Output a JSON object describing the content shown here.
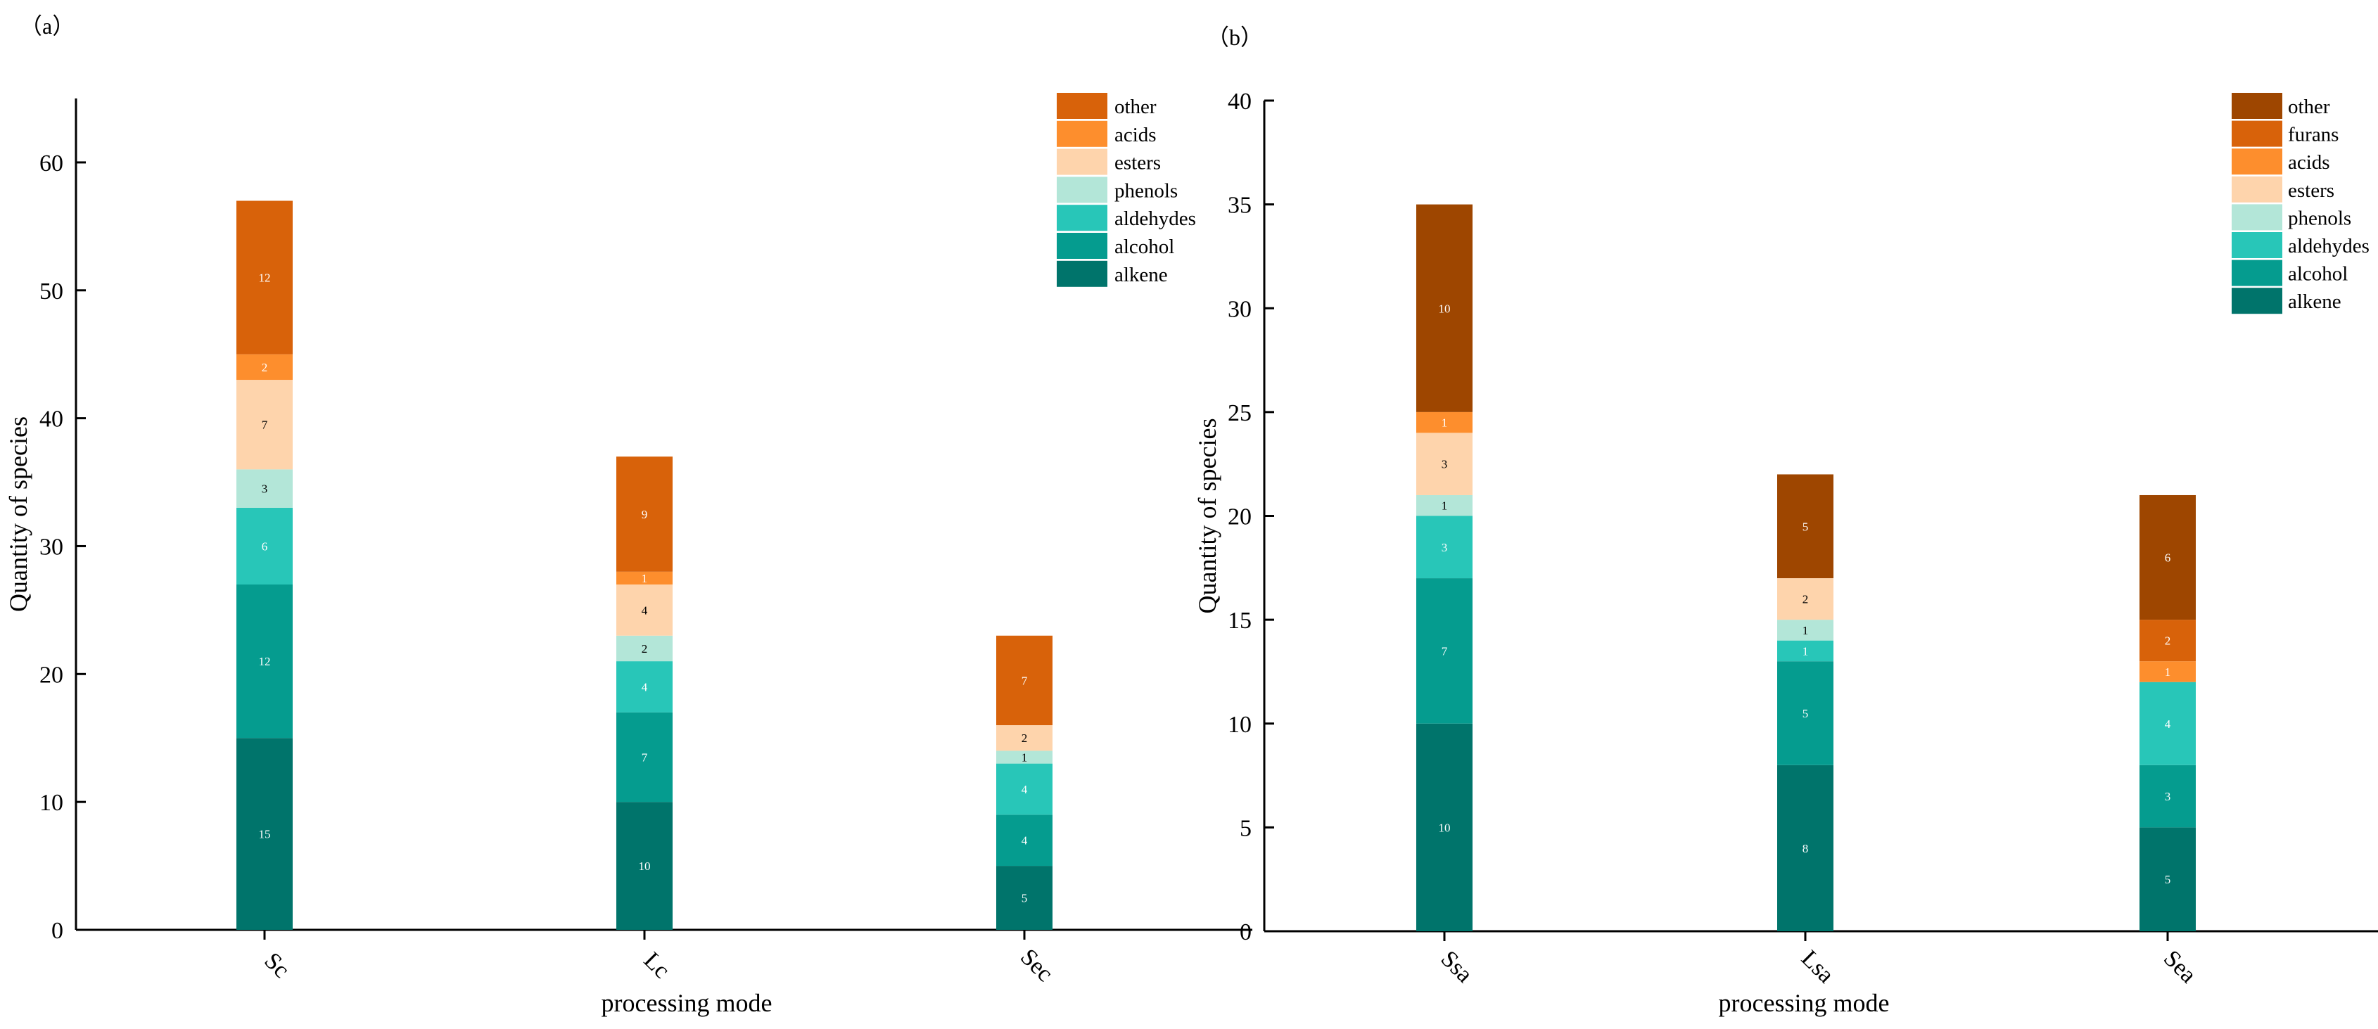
{
  "chart_data": [
    {
      "type": "bar",
      "stacked": true,
      "panel_label": "（a）",
      "xlabel": "processing mode",
      "ylabel": "Quantity of species",
      "ylim": [
        0,
        65
      ],
      "yticks": [
        0,
        10,
        20,
        30,
        40,
        50,
        60
      ],
      "legend_position": "top-right",
      "categories": [
        "Sc",
        "Lc",
        "Sec"
      ],
      "series": [
        {
          "name": "alkene",
          "color": "#00746B",
          "values": [
            15,
            10,
            5
          ]
        },
        {
          "name": "alcohol",
          "color": "#059C8F",
          "values": [
            12,
            7,
            4
          ]
        },
        {
          "name": "aldehydes",
          "color": "#28C6B8",
          "values": [
            6,
            4,
            4
          ]
        },
        {
          "name": "phenols",
          "color": "#B3E6D8",
          "values": [
            3,
            2,
            1
          ]
        },
        {
          "name": "esters",
          "color": "#FED4AC",
          "values": [
            7,
            4,
            2
          ]
        },
        {
          "name": "acids",
          "color": "#FD8E2D",
          "values": [
            2,
            1,
            0
          ]
        },
        {
          "name": "other",
          "color": "#D8620A",
          "values": [
            12,
            9,
            7
          ]
        }
      ]
    },
    {
      "type": "bar",
      "stacked": true,
      "panel_label": "（b）",
      "xlabel": "processing mode",
      "ylabel": "Quantity of species",
      "ylim": [
        0,
        40
      ],
      "yticks": [
        0,
        5,
        10,
        15,
        20,
        25,
        30,
        35,
        40
      ],
      "legend_position": "top-right",
      "categories": [
        "Ssa",
        "Lsa",
        "Sea"
      ],
      "series": [
        {
          "name": "alkene",
          "color": "#00746B",
          "values": [
            10,
            8,
            5
          ]
        },
        {
          "name": "alcohol",
          "color": "#059C8F",
          "values": [
            7,
            5,
            3
          ]
        },
        {
          "name": "aldehydes",
          "color": "#28C6B8",
          "values": [
            3,
            1,
            4
          ]
        },
        {
          "name": "phenols",
          "color": "#B3E6D8",
          "values": [
            1,
            1,
            0
          ]
        },
        {
          "name": "esters",
          "color": "#FED4AC",
          "values": [
            3,
            2,
            0
          ]
        },
        {
          "name": "acids",
          "color": "#FD8E2D",
          "values": [
            1,
            0,
            1
          ]
        },
        {
          "name": "furans",
          "color": "#D8620A",
          "values": [
            0,
            0,
            2
          ]
        },
        {
          "name": "other",
          "color": "#9E4600",
          "values": [
            10,
            5,
            6
          ]
        }
      ]
    }
  ]
}
